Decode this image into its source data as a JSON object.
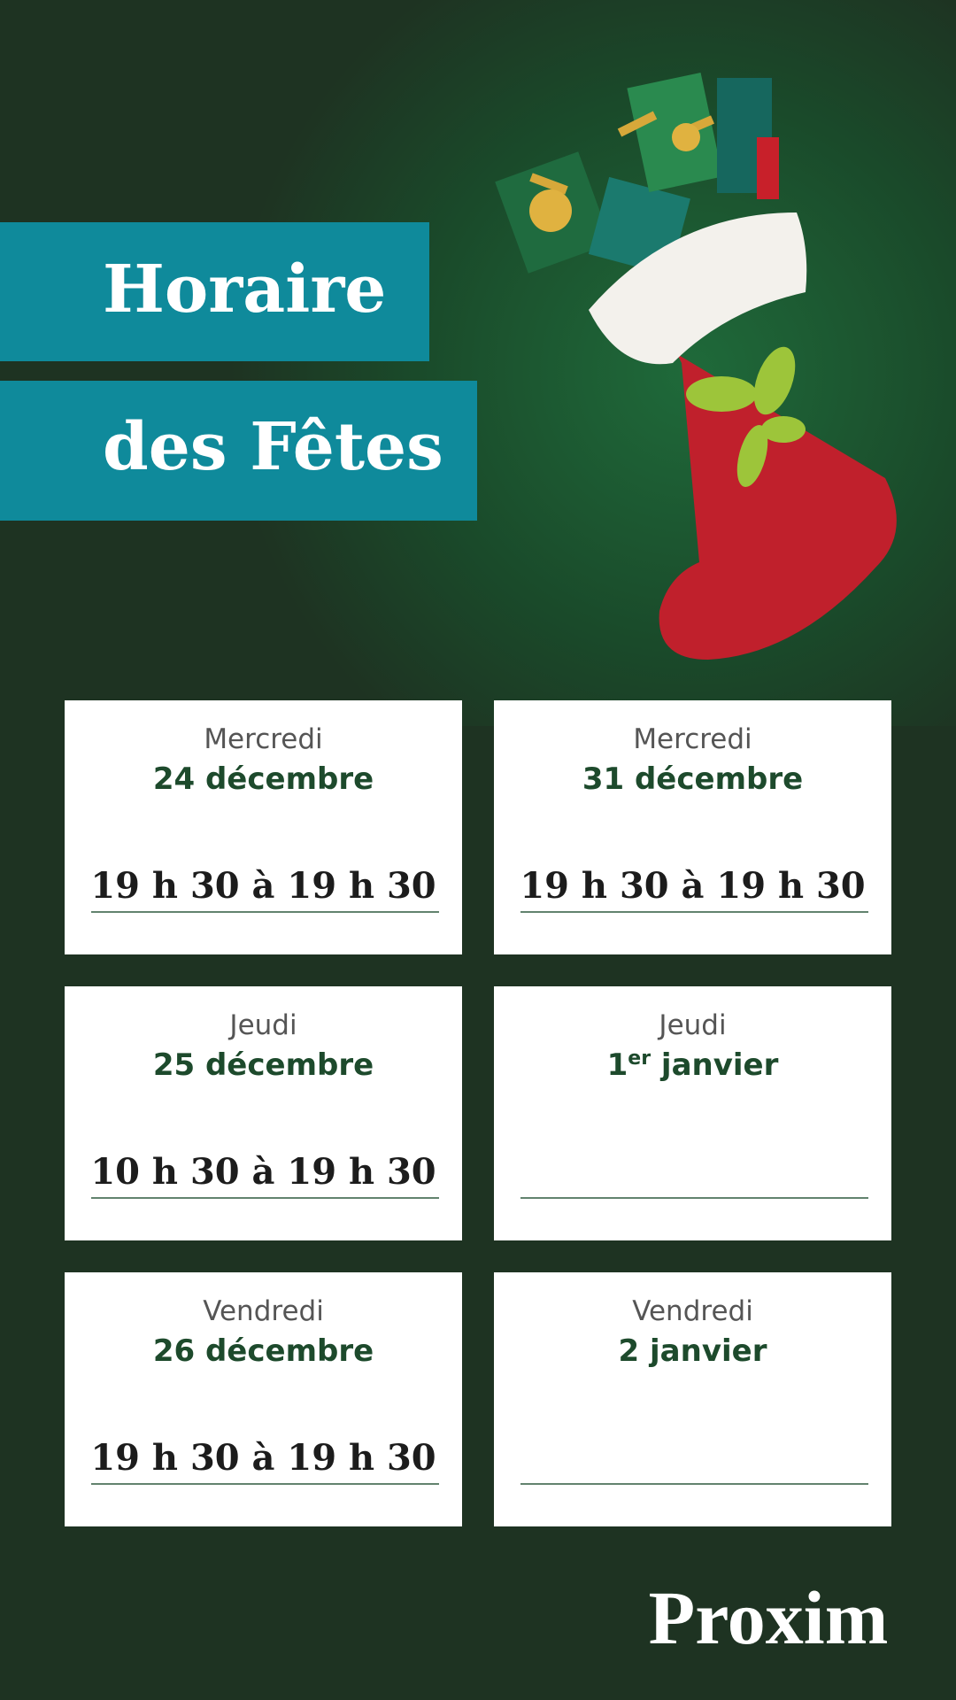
{
  "header": {
    "title_line1": "Horaire",
    "title_line2": "des Fêtes"
  },
  "cards": [
    {
      "day": "Mercredi",
      "date": "24 décembre",
      "hours": "19 h 30 à 19 h 30"
    },
    {
      "day": "Mercredi",
      "date": "31 décembre",
      "hours": "19 h 30 à 19 h 30"
    },
    {
      "day": "Jeudi",
      "date": "25 décembre",
      "hours": "10 h 30 à 19 h 30"
    },
    {
      "day": "Jeudi",
      "date_parts": {
        "number": "1",
        "suffix": "er",
        "month": " janvier"
      }
    },
    {
      "day": "Vendredi",
      "date": "26 décembre",
      "hours": "19 h 30 à 19 h 30"
    },
    {
      "day": "Vendredi",
      "date": "2 janvier"
    }
  ],
  "logo": "Proxim"
}
